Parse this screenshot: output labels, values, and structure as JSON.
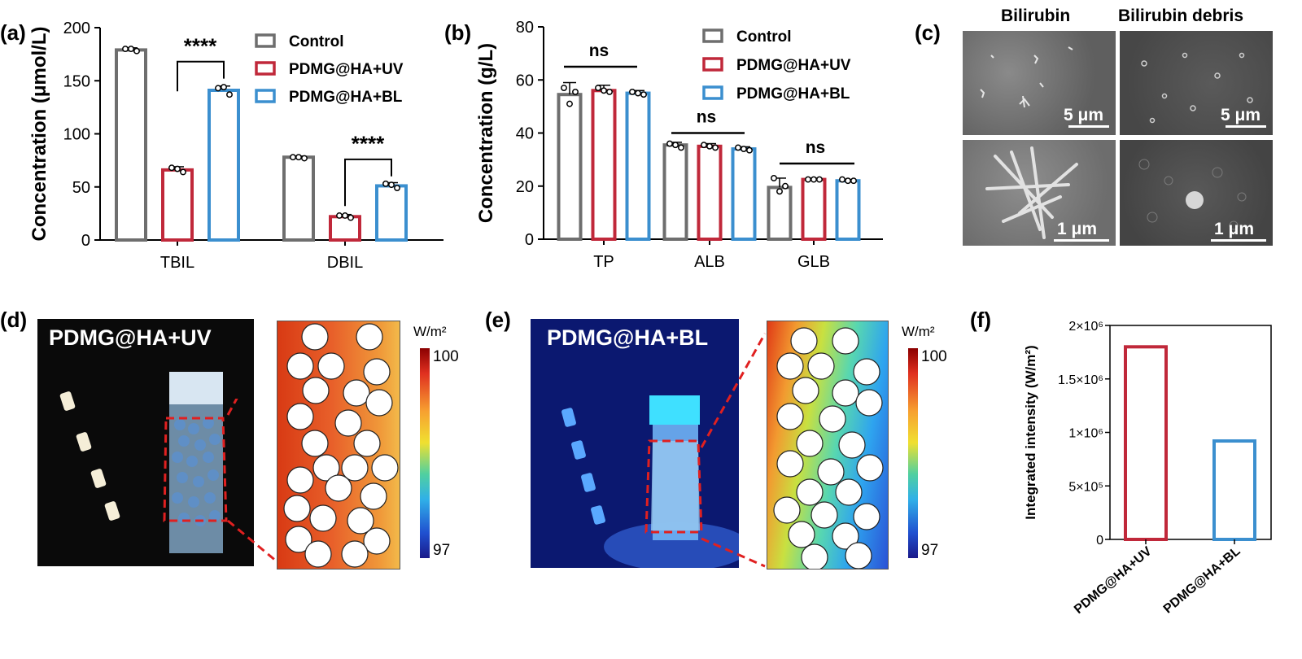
{
  "panels": {
    "a": "(a)",
    "b": "(b)",
    "c": "(c)",
    "d": "(d)",
    "e": "(e)",
    "f": "(f)"
  },
  "colors": {
    "control": "#6e6e6e",
    "uv": "#c0283a",
    "bl": "#3b8fcf"
  },
  "chart_data": [
    {
      "id": "a",
      "type": "bar",
      "ylabel": "Concentration (μmol/L)",
      "ylim": [
        0,
        200
      ],
      "yticks": [
        0,
        50,
        100,
        150,
        200
      ],
      "categories": [
        "TBIL",
        "DBIL"
      ],
      "series": [
        {
          "name": "Control",
          "values": [
            179,
            78
          ],
          "errors": [
            2,
            1
          ],
          "points": [
            [
              180,
              180,
              178
            ],
            [
              78,
              78,
              77
            ]
          ]
        },
        {
          "name": "PDMG@HA+UV",
          "values": [
            66,
            22
          ],
          "errors": [
            3,
            2
          ],
          "points": [
            [
              68,
              67,
              64
            ],
            [
              23,
              23,
              21
            ]
          ]
        },
        {
          "name": "PDMG@HA+BL",
          "values": [
            141,
            51
          ],
          "errors": [
            4,
            3
          ],
          "points": [
            [
              143,
              144,
              137
            ],
            [
              53,
              52,
              49
            ]
          ]
        }
      ],
      "annotations": [
        {
          "text": "****",
          "category": 0
        },
        {
          "text": "****",
          "category": 1
        }
      ],
      "legend": "top-right"
    },
    {
      "id": "b",
      "type": "bar",
      "ylabel": "Concentration (g/L)",
      "ylim": [
        0,
        80
      ],
      "yticks": [
        0,
        20,
        40,
        60,
        80
      ],
      "categories": [
        "TP",
        "ALB",
        "GLB"
      ],
      "series": [
        {
          "name": "Control",
          "values": [
            54.5,
            35.5,
            19.5
          ],
          "errors": [
            4.5,
            1,
            3.5
          ],
          "points": [
            [
              57,
              51,
              55.5
            ],
            [
              36,
              35.5,
              34.5
            ],
            [
              23,
              18,
              20
            ]
          ]
        },
        {
          "name": "PDMG@HA+UV",
          "values": [
            56,
            35,
            22.5
          ],
          "errors": [
            2,
            1,
            0.5
          ],
          "points": [
            [
              57,
              56,
              55.5
            ],
            [
              35.5,
              35,
              34.5
            ],
            [
              22.5,
              22.5,
              22.5
            ]
          ]
        },
        {
          "name": "PDMG@HA+BL",
          "values": [
            55,
            34,
            22
          ],
          "errors": [
            1,
            0.8,
            0.5
          ],
          "points": [
            [
              55.5,
              55,
              54.5
            ],
            [
              34.5,
              34,
              33.5
            ],
            [
              22.5,
              22,
              22
            ]
          ]
        }
      ],
      "annotations": [
        {
          "text": "ns",
          "category": 0
        },
        {
          "text": "ns",
          "category": 1
        },
        {
          "text": "ns",
          "category": 2
        }
      ],
      "legend": "top-right"
    },
    {
      "id": "f",
      "type": "bar",
      "ylabel": "Integrated intensity (W/m²)",
      "ylim": [
        0,
        2000000
      ],
      "yticks": [
        0,
        500000,
        1000000,
        1500000,
        2000000
      ],
      "yticklabels": [
        "0",
        "5×10⁵",
        "1×10⁶",
        "1.5×10⁶",
        "2×10⁶"
      ],
      "categories": [
        "PDMG@HA+UV",
        "PDMG@HA+BL"
      ],
      "values": [
        1800000,
        920000
      ]
    }
  ],
  "panel_c": {
    "col_titles": [
      "Bilirubin",
      "Bilirubin debris"
    ],
    "scalebars": [
      "5 μm",
      "5 μm",
      "1 μm",
      "1 μm"
    ]
  },
  "panel_d": {
    "photo_title": "PDMG@HA+UV",
    "colorbar_unit": "W/m²",
    "colorbar_max": "100",
    "colorbar_min": "97"
  },
  "panel_e": {
    "photo_title": "PDMG@HA+BL",
    "colorbar_unit": "W/m²",
    "colorbar_max": "100",
    "colorbar_min": "97"
  }
}
